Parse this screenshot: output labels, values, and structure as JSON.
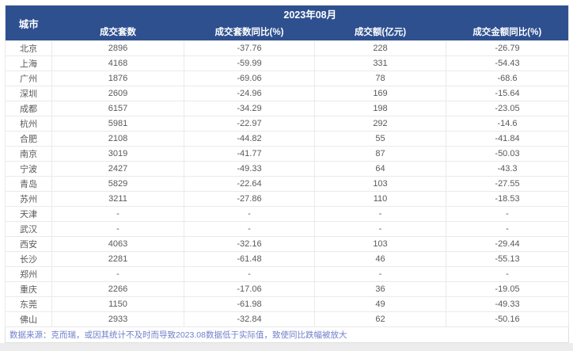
{
  "colors": {
    "header_bg": "#2E508F",
    "footnote_text": "#7080CB",
    "grid_line": "#eaeaea",
    "cell_text": "#595959"
  },
  "chart_data": {
    "type": "table",
    "title": "2023年08月",
    "columns": [
      "城市",
      "成交套数",
      "成交套数同比(%)",
      "成交额(亿元)",
      "成交金额同比(%)"
    ],
    "rows": [
      [
        "北京",
        "2896",
        "-37.76",
        "228",
        "-26.79"
      ],
      [
        "上海",
        "4168",
        "-59.99",
        "331",
        "-54.43"
      ],
      [
        "广州",
        "1876",
        "-69.06",
        "78",
        "-68.6"
      ],
      [
        "深圳",
        "2609",
        "-24.96",
        "169",
        "-15.64"
      ],
      [
        "成都",
        "6157",
        "-34.29",
        "198",
        "-23.05"
      ],
      [
        "杭州",
        "5981",
        "-22.97",
        "292",
        "-14.6"
      ],
      [
        "合肥",
        "2108",
        "-44.82",
        "55",
        "-41.84"
      ],
      [
        "南京",
        "3019",
        "-41.77",
        "87",
        "-50.03"
      ],
      [
        "宁波",
        "2427",
        "-49.33",
        "64",
        "-43.3"
      ],
      [
        "青岛",
        "5829",
        "-22.64",
        "103",
        "-27.55"
      ],
      [
        "苏州",
        "3211",
        "-27.86",
        "110",
        "-18.53"
      ],
      [
        "天津",
        "-",
        "-",
        "-",
        "-"
      ],
      [
        "武汉",
        "-",
        "-",
        "-",
        "-"
      ],
      [
        "西安",
        "4063",
        "-32.16",
        "103",
        "-29.44"
      ],
      [
        "长沙",
        "2281",
        "-61.48",
        "46",
        "-55.13"
      ],
      [
        "郑州",
        "-",
        "-",
        "-",
        "-"
      ],
      [
        "重庆",
        "2266",
        "-17.06",
        "36",
        "-19.05"
      ],
      [
        "东莞",
        "1150",
        "-61.98",
        "49",
        "-49.33"
      ],
      [
        "佛山",
        "2933",
        "-32.84",
        "62",
        "-50.16"
      ]
    ],
    "footnote": "数据来源：克而瑞，或因其统计不及时而导致2023.08数据低于实际值，致使同比跌幅被放大"
  }
}
